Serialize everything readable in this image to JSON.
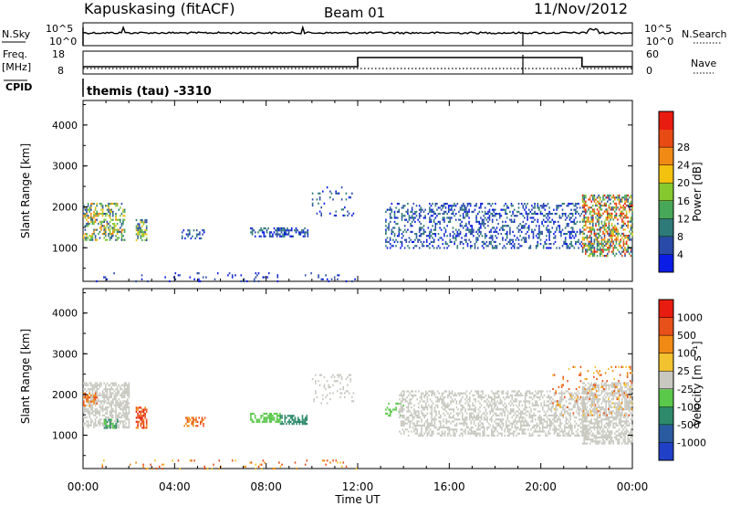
{
  "header": {
    "station": "Kapuskasing (fitACF)",
    "beam": "Beam 01",
    "date": "11/Nov/2012"
  },
  "noise_panel": {
    "left_label": "N.Sky",
    "right_label": "N.Search",
    "tick_top": "10^5",
    "tick_bottom": "10^0"
  },
  "freq_panel": {
    "left_label_1": "Freq.",
    "left_label_2": "[MHz]",
    "right_label": "Nave",
    "left_tick_top": "18",
    "left_tick_bottom": "8",
    "right_tick_top": "60",
    "right_tick_bottom": "0"
  },
  "cpid": {
    "label": "CPID",
    "value": "themis (tau) -3310"
  },
  "chart_data": [
    {
      "type": "heatmap",
      "parameter": "power",
      "ylabel": "Slant Range [km]",
      "ylim": [
        180,
        4600
      ],
      "yticks": [
        "1000",
        "2000",
        "3000",
        "4000"
      ],
      "xlim_hours": [
        0,
        24
      ],
      "xticks": [
        "00:00",
        "04:00",
        "08:00",
        "12:00",
        "16:00",
        "20:00",
        "00:00"
      ],
      "colorbar": {
        "label": "Power [dB]",
        "ticks": [
          "4",
          "8",
          "12",
          "16",
          "20",
          "24",
          "28"
        ],
        "colors": [
          "#0a1ce6",
          "#2a4aa8",
          "#2e7a78",
          "#48a85a",
          "#86c830",
          "#f2c20e",
          "#f08a14",
          "#e84a14",
          "#e81c10"
        ]
      },
      "scatter_regions": [
        {
          "t": [
            0.0,
            1.8
          ],
          "r": [
            1200,
            2100
          ],
          "density": 0.45,
          "levels": [
            1,
            6
          ]
        },
        {
          "t": [
            2.3,
            2.8
          ],
          "r": [
            1200,
            1700
          ],
          "density": 0.6,
          "levels": [
            1,
            5
          ]
        },
        {
          "t": [
            4.3,
            5.3
          ],
          "r": [
            1250,
            1450
          ],
          "density": 0.3,
          "levels": [
            0,
            2
          ]
        },
        {
          "t": [
            7.3,
            9.8
          ],
          "r": [
            1300,
            1500
          ],
          "density": 0.45,
          "levels": [
            0,
            2
          ]
        },
        {
          "t": [
            10.0,
            11.8
          ],
          "r": [
            1800,
            2500
          ],
          "density": 0.1,
          "levels": [
            0,
            2
          ]
        },
        {
          "t": [
            13.2,
            21.8
          ],
          "r": [
            1000,
            2100
          ],
          "density": 0.3,
          "levels": [
            0,
            2
          ]
        },
        {
          "t": [
            21.8,
            24.0
          ],
          "r": [
            800,
            2300
          ],
          "density": 0.55,
          "levels": [
            1,
            8
          ]
        },
        {
          "t": [
            0.5,
            12.0
          ],
          "r": [
            200,
            400
          ],
          "density": 0.06,
          "levels": [
            0,
            1
          ]
        }
      ]
    },
    {
      "type": "heatmap",
      "parameter": "velocity",
      "ylabel": "Slant Range [km]",
      "ylim": [
        180,
        4600
      ],
      "yticks": [
        "1000",
        "2000",
        "3000",
        "4000"
      ],
      "xlim_hours": [
        0,
        24
      ],
      "xticks": [
        "00:00",
        "04:00",
        "08:00",
        "12:00",
        "16:00",
        "20:00",
        "00:00"
      ],
      "xlabel": "Time UT",
      "colorbar": {
        "label": "Velocity [m s⁻¹]",
        "ticks": [
          "1000",
          "500",
          "100",
          "25",
          "-25",
          "-100",
          "-500",
          "-1000"
        ],
        "colors": [
          "#2040c8",
          "#2a5aa0",
          "#2e8a6a",
          "#5ac84a",
          "#c8c8c0",
          "#f2c230",
          "#f08a14",
          "#e8501a",
          "#e81c10"
        ]
      },
      "scatter_regions": [
        {
          "t": [
            0.0,
            2.0
          ],
          "r": [
            1200,
            2300
          ],
          "density": 0.6,
          "levels": [
            4,
            4
          ]
        },
        {
          "t": [
            0.0,
            0.6
          ],
          "r": [
            1750,
            2050
          ],
          "density": 0.5,
          "levels": [
            6,
            7
          ]
        },
        {
          "t": [
            0.9,
            1.5
          ],
          "r": [
            1200,
            1400
          ],
          "density": 0.5,
          "levels": [
            2,
            3
          ]
        },
        {
          "t": [
            2.3,
            2.8
          ],
          "r": [
            1200,
            1700
          ],
          "density": 0.7,
          "levels": [
            6,
            8
          ]
        },
        {
          "t": [
            4.4,
            5.3
          ],
          "r": [
            1250,
            1450
          ],
          "density": 0.45,
          "levels": [
            6,
            7
          ]
        },
        {
          "t": [
            7.3,
            8.6
          ],
          "r": [
            1350,
            1550
          ],
          "density": 0.6,
          "levels": [
            3,
            3
          ]
        },
        {
          "t": [
            8.6,
            9.8
          ],
          "r": [
            1300,
            1500
          ],
          "density": 0.6,
          "levels": [
            2,
            2
          ]
        },
        {
          "t": [
            10.0,
            11.8
          ],
          "r": [
            1800,
            2500
          ],
          "density": 0.15,
          "levels": [
            4,
            4
          ]
        },
        {
          "t": [
            13.2,
            14.0
          ],
          "r": [
            1500,
            1800
          ],
          "density": 0.3,
          "levels": [
            3,
            3
          ]
        },
        {
          "t": [
            13.8,
            22.0
          ],
          "r": [
            1000,
            2100
          ],
          "density": 0.45,
          "levels": [
            4,
            4
          ]
        },
        {
          "t": [
            21.8,
            24.0
          ],
          "r": [
            800,
            2300
          ],
          "density": 0.6,
          "levels": [
            4,
            4
          ]
        },
        {
          "t": [
            20.5,
            24.0
          ],
          "r": [
            1500,
            2700
          ],
          "density": 0.1,
          "levels": [
            5,
            7
          ]
        },
        {
          "t": [
            0.5,
            12.0
          ],
          "r": [
            200,
            400
          ],
          "density": 0.06,
          "levels": [
            5,
            7
          ]
        }
      ]
    }
  ]
}
